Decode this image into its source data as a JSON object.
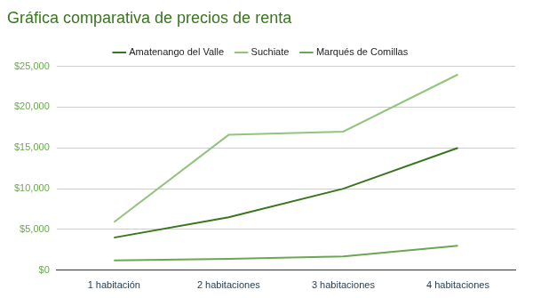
{
  "chart_data": {
    "type": "line",
    "title": "Gráfica comparativa de precios de renta",
    "categories": [
      "1 habitación",
      "2 habitaciones",
      "3 habitaciones",
      "4 habitaciones"
    ],
    "series": [
      {
        "name": "Amatenango del Valle",
        "color": "#38761d",
        "values": [
          4000,
          6500,
          10000,
          15000
        ]
      },
      {
        "name": "Suchiate",
        "color": "#93c47d",
        "values": [
          5900,
          16600,
          17000,
          24000
        ]
      },
      {
        "name": "Marqués de Comillas",
        "color": "#6aa84f",
        "values": [
          1200,
          1400,
          1700,
          3000
        ]
      }
    ],
    "ylim": [
      0,
      25000
    ],
    "yticks": [
      {
        "value": 0,
        "label": "$0"
      },
      {
        "value": 5000,
        "label": "$5,000"
      },
      {
        "value": 10000,
        "label": "$10,000"
      },
      {
        "value": 15000,
        "label": "$15,000"
      },
      {
        "value": 20000,
        "label": "$20,000"
      },
      {
        "value": 25000,
        "label": "$25,000"
      }
    ],
    "grid": true,
    "legend": "top"
  }
}
